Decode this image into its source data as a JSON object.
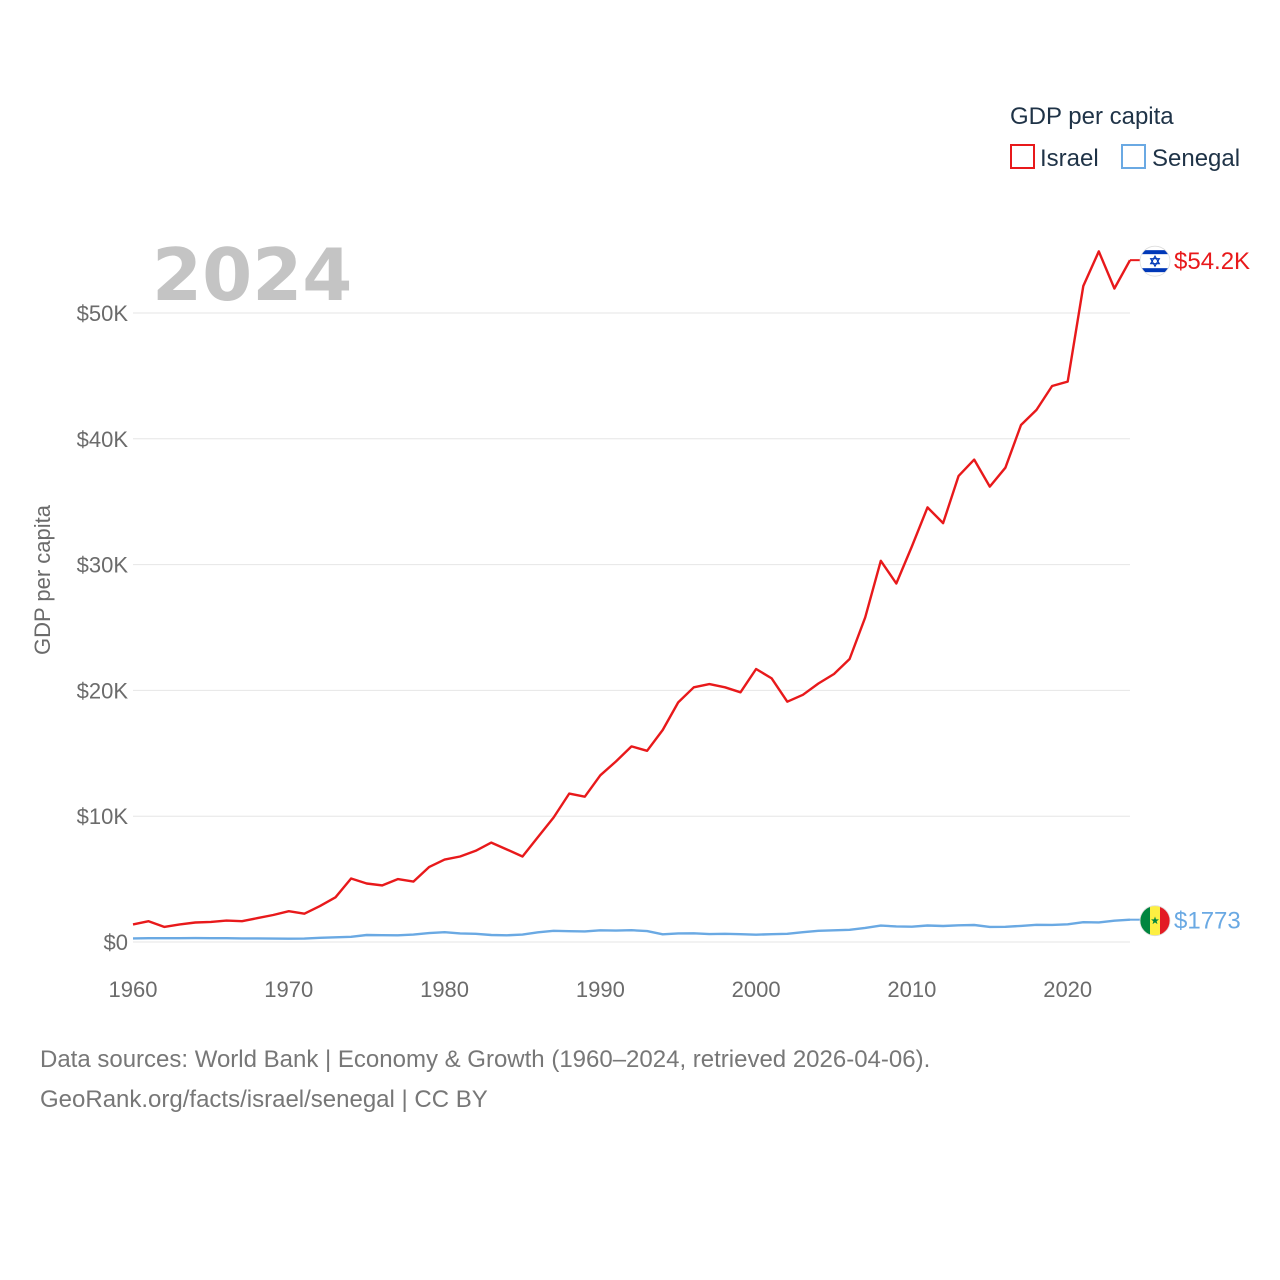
{
  "chart_data": {
    "type": "line",
    "title": "GDP per capita",
    "year_label": "2024",
    "ylabel": "GDP per capita",
    "xlabel": "",
    "xlim": [
      1960,
      2024
    ],
    "ylim": [
      0,
      55000
    ],
    "x_ticks": [
      1960,
      1970,
      1980,
      1990,
      2000,
      2010,
      2020
    ],
    "y_ticks": [
      {
        "value": 0,
        "label": "$0"
      },
      {
        "value": 10000,
        "label": "$10K"
      },
      {
        "value": 20000,
        "label": "$20K"
      },
      {
        "value": 30000,
        "label": "$30K"
      },
      {
        "value": 40000,
        "label": "$40K"
      },
      {
        "value": 50000,
        "label": "$50K"
      }
    ],
    "grid": true,
    "legend": {
      "title": "GDP per capita",
      "position": "top-right",
      "entries": [
        {
          "name": "Israel",
          "color": "#e8191b"
        },
        {
          "name": "Senegal",
          "color": "#6aa9e3"
        }
      ]
    },
    "x": [
      1960,
      1961,
      1962,
      1963,
      1964,
      1965,
      1966,
      1967,
      1968,
      1969,
      1970,
      1971,
      1972,
      1973,
      1974,
      1975,
      1976,
      1977,
      1978,
      1979,
      1980,
      1981,
      1982,
      1983,
      1984,
      1985,
      1986,
      1987,
      1988,
      1989,
      1990,
      1991,
      1992,
      1993,
      1994,
      1995,
      1996,
      1997,
      1998,
      1999,
      2000,
      2001,
      2002,
      2003,
      2004,
      2005,
      2006,
      2007,
      2008,
      2009,
      2010,
      2011,
      2012,
      2013,
      2014,
      2015,
      2016,
      2017,
      2018,
      2019,
      2020,
      2021,
      2022,
      2023,
      2024
    ],
    "series": [
      {
        "name": "Israel",
        "color": "#e8191b",
        "end_label": "$54.2K",
        "flag": "israel-flag",
        "values": [
          1400,
          1650,
          1200,
          1400,
          1550,
          1600,
          1700,
          1650,
          1900,
          2150,
          2450,
          2250,
          2850,
          3550,
          5050,
          4650,
          4500,
          5000,
          4800,
          5950,
          6550,
          6800,
          7250,
          7900,
          7350,
          6800,
          8350,
          9900,
          11800,
          11550,
          13250,
          14350,
          15550,
          15200,
          16850,
          19050,
          20250,
          20500,
          20250,
          19850,
          21700,
          20950,
          19100,
          19650,
          20550,
          21300,
          22500,
          25800,
          30300,
          28500,
          31450,
          34550,
          33300,
          37050,
          38350,
          36200,
          37700,
          41100,
          42300,
          44200,
          44550,
          52150,
          54900,
          51950,
          54200
        ]
      },
      {
        "name": "Senegal",
        "color": "#6aa9e3",
        "end_label": "$1773",
        "flag": "senegal-flag",
        "values": [
          290,
          300,
          300,
          300,
          310,
          300,
          300,
          290,
          290,
          270,
          260,
          270,
          330,
          370,
          410,
          560,
          540,
          530,
          590,
          710,
          780,
          680,
          650,
          560,
          530,
          590,
          770,
          890,
          860,
          840,
          930,
          910,
          940,
          870,
          610,
          680,
          690,
          630,
          650,
          620,
          580,
          620,
          650,
          780,
          890,
          930,
          970,
          1120,
          1300,
          1240,
          1220,
          1310,
          1270,
          1330,
          1350,
          1200,
          1210,
          1280,
          1370,
          1360,
          1410,
          1570,
          1560,
          1690,
          1773
        ]
      }
    ]
  },
  "footer": {
    "source": "Data sources: World Bank | Economy & Growth (1960–2024, retrieved 2026-04-06).",
    "credit": "GeoRank.org/facts/israel/senegal | CC BY"
  }
}
